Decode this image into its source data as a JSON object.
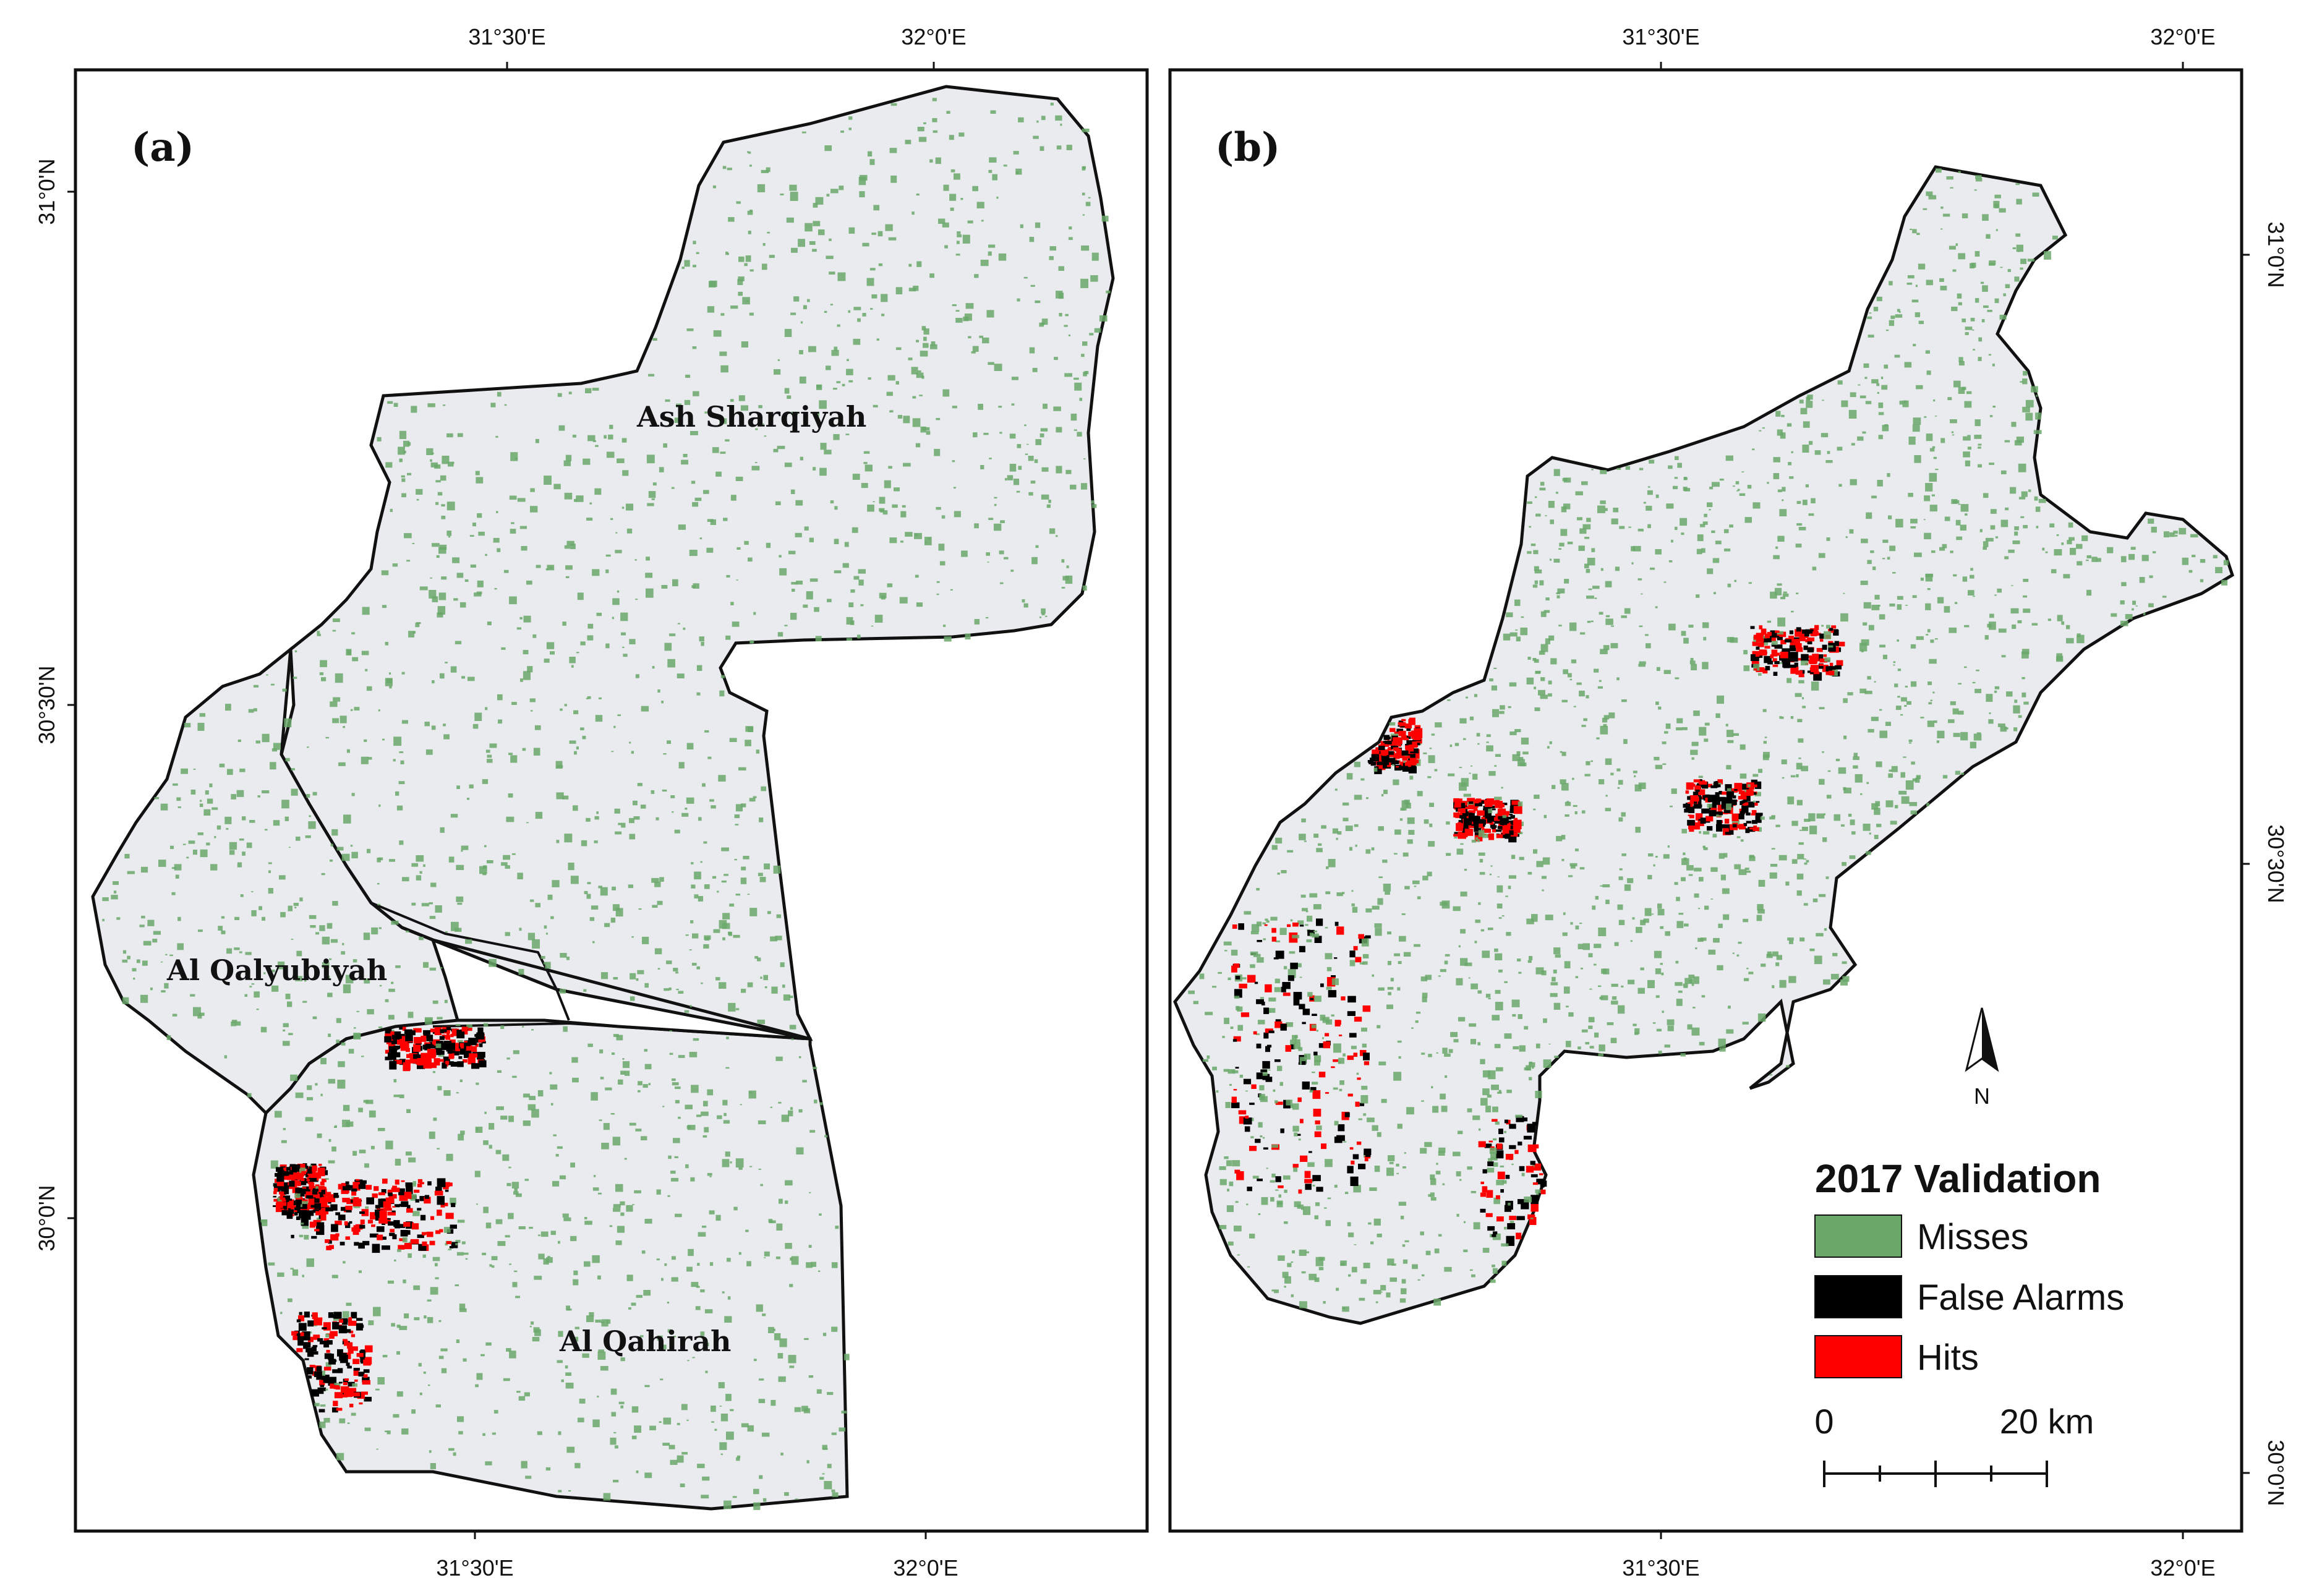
{
  "panels": {
    "a": {
      "label": "(a)",
      "top_ticks": [
        "31°30'E",
        "32°0'E"
      ],
      "bottom_ticks": [
        "31°30'E",
        "32°0'E"
      ],
      "left_ticks": [
        "31°0'N",
        "30°30'N",
        "30°0'N"
      ],
      "regions": {
        "sharqiyah": "Ash Sharqiyah",
        "qalyubiyah": "Al Qalyubiyah",
        "qahirah": "Al Qahirah"
      }
    },
    "b": {
      "label": "(b)",
      "top_ticks": [
        "31°30'E",
        "32°0'E"
      ],
      "bottom_ticks": [
        "31°30'E",
        "32°0'E"
      ],
      "right_ticks": [
        "31°0'N",
        "30°30'N",
        "30°0'N"
      ]
    }
  },
  "north_arrow": {
    "label": "N"
  },
  "legend": {
    "title": "2017 Validation",
    "items": [
      {
        "label": "Misses",
        "color": "#6aa86a"
      },
      {
        "label": "False Alarms",
        "color": "#000000"
      },
      {
        "label": "Hits",
        "color": "#ff0000"
      }
    ]
  },
  "scale_bar": {
    "start": "0",
    "end": "20 km"
  },
  "colors": {
    "background_land": "#e9ebee",
    "misses": "#6aa86a",
    "false_alarms": "#000000",
    "hits": "#ff0000",
    "boundary": "#111111"
  }
}
